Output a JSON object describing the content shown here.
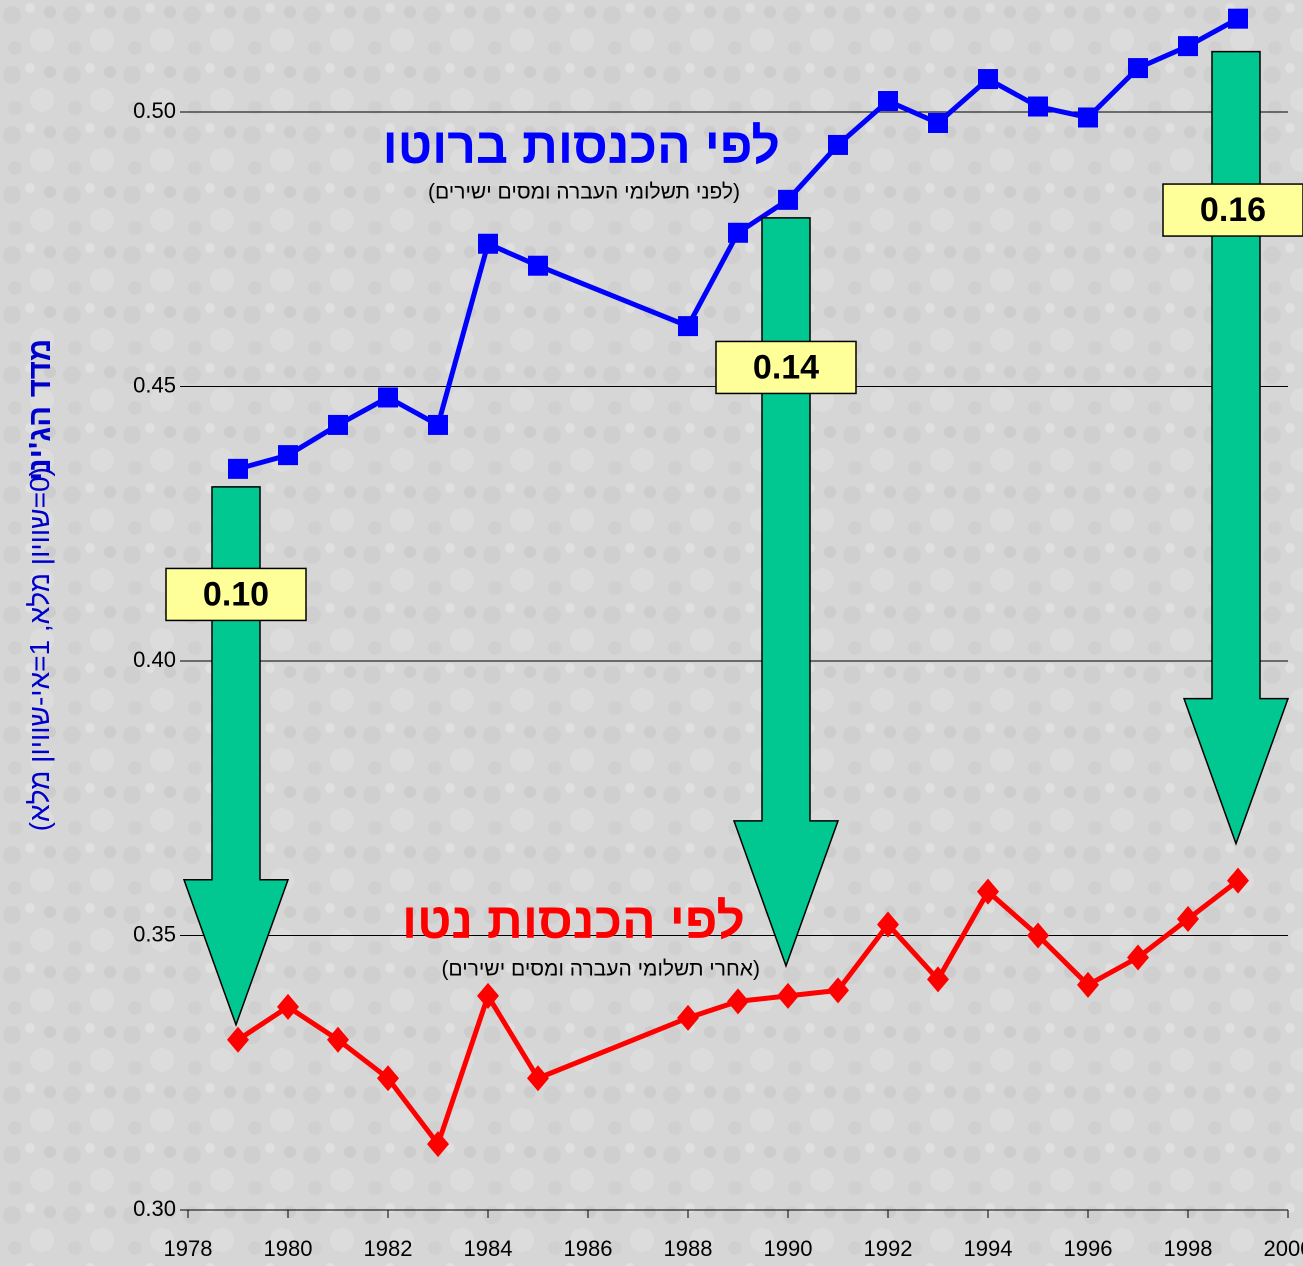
{
  "chart_data": {
    "type": "line",
    "ylabel": "מדד הג'יני",
    "ylabel_note": "(0=שוויון מלא, 1=אי-שוויון מלא)",
    "xlim": [
      1978,
      2000
    ],
    "xticks": [
      1978,
      1980,
      1982,
      1984,
      1986,
      1988,
      1990,
      1992,
      1994,
      1996,
      1998,
      2000
    ],
    "ylim": [
      0.3,
      0.52
    ],
    "yticks": [
      {
        "value": 0.3,
        "label": "0.30"
      },
      {
        "value": 0.35,
        "label": "0.35"
      },
      {
        "value": 0.4,
        "label": "0.40"
      },
      {
        "value": 0.45,
        "label": "0.45"
      },
      {
        "value": 0.5,
        "label": "0.50"
      }
    ],
    "grid": true,
    "series": [
      {
        "name": "לפי הכנסות ברוטו",
        "note": "(לפני תשלומי העברה ומסים ישירים)",
        "color": "#0000ff",
        "marker": "square",
        "x": [
          1979,
          1980,
          1981,
          1982,
          1983,
          1984,
          1985,
          1988,
          1989,
          1990,
          1991,
          1992,
          1993,
          1994,
          1995,
          1996,
          1997,
          1998,
          1999
        ],
        "values": [
          0.435,
          0.4375,
          0.443,
          0.448,
          0.443,
          0.476,
          0.472,
          0.461,
          0.478,
          0.484,
          0.494,
          0.502,
          0.498,
          0.506,
          0.501,
          0.499,
          0.508,
          0.512,
          0.517
        ]
      },
      {
        "name": "לפי הכנסות נטו",
        "note": "(אחרי תשלומי העברה ומסים ישירים)",
        "color": "#ff0000",
        "marker": "diamond",
        "x": [
          1979,
          1980,
          1981,
          1982,
          1983,
          1984,
          1985,
          1988,
          1989,
          1990,
          1991,
          1992,
          1993,
          1994,
          1995,
          1996,
          1997,
          1998,
          1999
        ],
        "values": [
          0.331,
          0.337,
          0.331,
          0.324,
          0.312,
          0.339,
          0.324,
          0.335,
          0.338,
          0.339,
          0.34,
          0.352,
          0.342,
          0.358,
          0.35,
          0.341,
          0.346,
          0.353,
          0.36
        ]
      }
    ],
    "annotations": [
      {
        "x": 1979,
        "text": "0.10"
      },
      {
        "x": 1990,
        "text": "0.14"
      },
      {
        "x": 1999,
        "text": "0.16"
      }
    ]
  }
}
